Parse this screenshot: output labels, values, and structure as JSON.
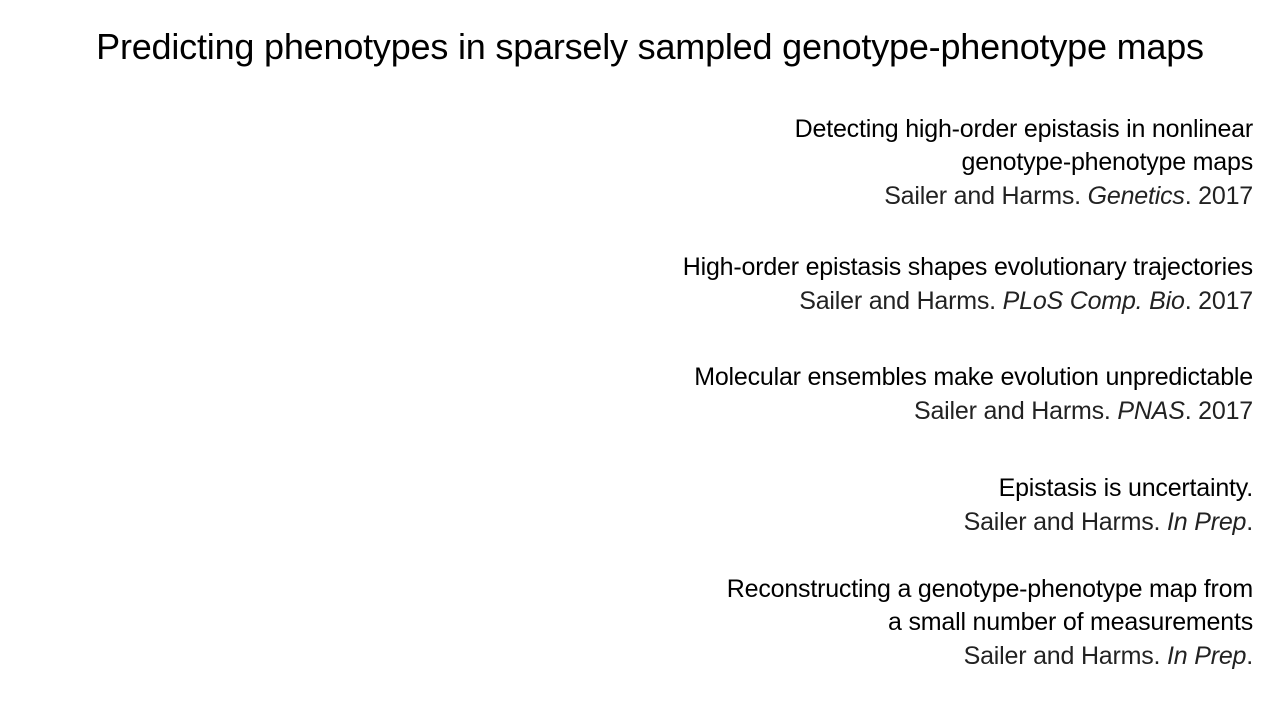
{
  "slide": {
    "title": "Predicting phenotypes in sparsely sampled genotype-phenotype maps"
  },
  "publications": [
    {
      "title_lines": [
        "Detecting high-order epistasis in nonlinear",
        "genotype-phenotype maps"
      ],
      "authors": "Sailer and Harms. ",
      "journal": "Genetics",
      "year_suffix": ". 2017"
    },
    {
      "title_lines": [
        "High-order epistasis shapes evolutionary trajectories"
      ],
      "authors": "Sailer and Harms. ",
      "journal": "PLoS Comp. Bio",
      "year_suffix": ". 2017"
    },
    {
      "title_lines": [
        "Molecular ensembles make evolution unpredictable"
      ],
      "authors": "Sailer and Harms. ",
      "journal": "PNAS",
      "year_suffix": ". 2017"
    },
    {
      "title_lines": [
        "Epistasis is uncertainty."
      ],
      "authors": "Sailer and Harms. ",
      "journal": "In Prep",
      "year_suffix": "."
    },
    {
      "title_lines": [
        "Reconstructing a genotype-phenotype map from",
        "a small number of measurements"
      ],
      "authors": "Sailer and Harms. ",
      "journal": "In Prep",
      "year_suffix": "."
    }
  ]
}
